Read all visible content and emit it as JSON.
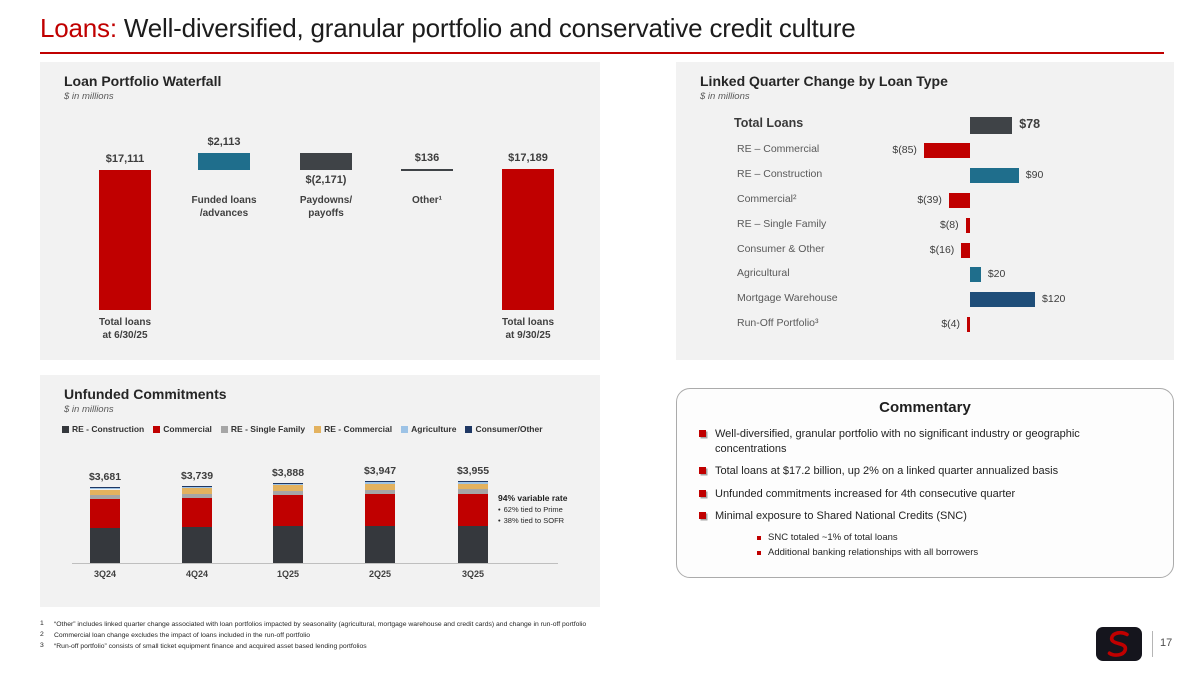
{
  "slide": {
    "title_accent": "Loans:",
    "title_rest": " Well-diversified, granular portfolio and conservative credit culture",
    "accent_color": "#C00000",
    "page_number": "17"
  },
  "panels": {
    "waterfall": {
      "title": "Loan Portfolio Waterfall",
      "subtitle": "$ in millions"
    },
    "linked_quarter": {
      "title": "Linked Quarter Change by Loan Type",
      "subtitle": "$ in millions"
    },
    "unfunded": {
      "title": "Unfunded Commitments",
      "subtitle": "$ in millions",
      "annotation": {
        "title": "94% variable rate",
        "bullets": [
          "62% tied to Prime",
          "38% tied to SOFR"
        ]
      }
    }
  },
  "commentary": {
    "title": "Commentary",
    "bullets": [
      "Well-diversified, granular portfolio with no significant industry or geographic concentrations",
      "Total loans at $17.2 billion, up 2% on a linked quarter annualized basis",
      "Unfunded commitments increased for 4th consecutive quarter",
      "Minimal exposure to Shared National Credits (SNC)"
    ],
    "sub_bullets": [
      "SNC totaled ~1% of total loans",
      "Additional banking relationships with all borrowers"
    ]
  },
  "footnotes": [
    {
      "num": "1",
      "text": "“Other” includes linked quarter change associated with loan portfolios impacted by seasonality (agricultural, mortgage warehouse and credit cards) and change in run-off portfolio"
    },
    {
      "num": "2",
      "text": "Commercial loan change excludes the impact of loans included in the run-off portfolio"
    },
    {
      "num": "3",
      "text": "“Run-off portfolio” consists of small ticket equipment finance and acquired asset based lending portfolios"
    }
  ],
  "chart_data": [
    {
      "type": "waterfall",
      "title": "Loan Portfolio Waterfall",
      "unit": "$ in millions",
      "ylim": [
        0,
        19500
      ],
      "steps": [
        {
          "label_lines": [
            "Total loans",
            "at 6/30/25"
          ],
          "value": 17111,
          "display": "$17,111",
          "kind": "total",
          "color": "#C00000",
          "value_label_pos": "above"
        },
        {
          "label_lines": [
            "Funded loans",
            "/advances"
          ],
          "value": 2113,
          "display": "$2,113",
          "kind": "increase",
          "color": "#1F6E8C",
          "value_label_pos": "above"
        },
        {
          "label_lines": [
            "Paydowns/",
            "payoffs"
          ],
          "value": -2171,
          "display": "$(2,171)",
          "kind": "decrease",
          "color": "#3F4347",
          "value_label_pos": "below"
        },
        {
          "label_lines": [
            "Other¹"
          ],
          "value": 136,
          "display": "$136",
          "kind": "increase",
          "color": "#3F4347",
          "value_label_pos": "above"
        },
        {
          "label_lines": [
            "Total loans",
            "at 9/30/25"
          ],
          "value": 17189,
          "display": "$17,189",
          "kind": "total",
          "color": "#C00000",
          "value_label_pos": "above"
        }
      ]
    },
    {
      "type": "bar",
      "orientation": "horizontal",
      "title": "Linked Quarter Change by Loan Type",
      "unit": "$ in millions",
      "xlim": [
        -140,
        140
      ],
      "rows": [
        {
          "label": "Total Loans",
          "value": 78,
          "display": "$78",
          "color": "#3F4347",
          "emphasis": true
        },
        {
          "label": "RE – Commercial",
          "value": -85,
          "display": "$(85)",
          "color": "#C00000",
          "emphasis": false
        },
        {
          "label": "RE – Construction",
          "value": 90,
          "display": "$90",
          "color": "#1F6E8C",
          "emphasis": false
        },
        {
          "label": "Commercial²",
          "value": -39,
          "display": "$(39)",
          "color": "#C00000",
          "emphasis": false
        },
        {
          "label": "RE – Single Family",
          "value": -8,
          "display": "$(8)",
          "color": "#C00000",
          "emphasis": false
        },
        {
          "label": "Consumer & Other",
          "value": -16,
          "display": "$(16)",
          "color": "#C00000",
          "emphasis": false
        },
        {
          "label": "Agricultural",
          "value": 20,
          "display": "$20",
          "color": "#1F6E8C",
          "emphasis": false
        },
        {
          "label": "Mortgage Warehouse",
          "value": 120,
          "display": "$120",
          "color": "#1F4E79",
          "emphasis": false
        },
        {
          "label": "Run-Off Portfolio³",
          "value": -4,
          "display": "$(4)",
          "color": "#C00000",
          "emphasis": false
        }
      ]
    },
    {
      "type": "stacked-bar",
      "title": "Unfunded Commitments",
      "unit": "$ in millions",
      "ylim": [
        0,
        4400
      ],
      "categories": [
        "3Q24",
        "4Q24",
        "1Q25",
        "2Q25",
        "3Q25"
      ],
      "totals": [
        3681,
        3739,
        3888,
        3947,
        3955
      ],
      "total_displays": [
        "$3,681",
        "$3,739",
        "$3,888",
        "$3,947",
        "$3,955"
      ],
      "series": [
        {
          "name": "RE - Construction",
          "color": "#35383D",
          "values": [
            1700,
            1720,
            1780,
            1800,
            1800
          ]
        },
        {
          "name": "Commercial",
          "color": "#C00000",
          "values": [
            1400,
            1430,
            1500,
            1530,
            1540
          ]
        },
        {
          "name": "RE - Single Family",
          "color": "#A6A6A6",
          "values": [
            200,
            205,
            215,
            220,
            220
          ]
        },
        {
          "name": "RE - Commercial",
          "color": "#E3B25F",
          "values": [
            250,
            255,
            260,
            265,
            262
          ]
        },
        {
          "name": "Agriculture",
          "color": "#9DC3E6",
          "values": [
            80,
            78,
            80,
            80,
            80
          ]
        },
        {
          "name": "Consumer/Other",
          "color": "#1F3864",
          "values": [
            51,
            51,
            53,
            52,
            53
          ]
        }
      ]
    }
  ]
}
